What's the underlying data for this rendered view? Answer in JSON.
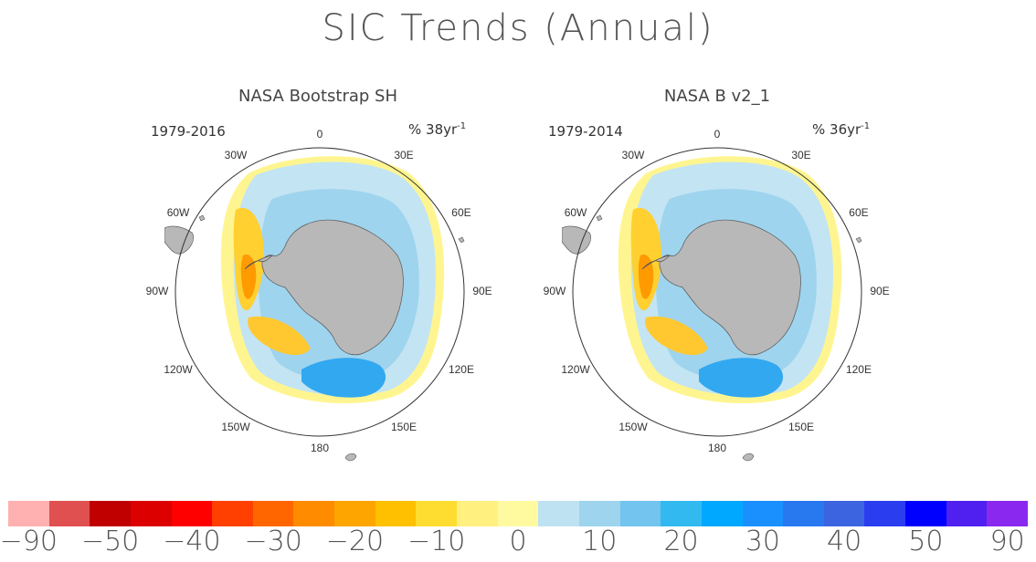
{
  "title": "SIC Trends (Annual)",
  "panels": [
    {
      "title": "NASA Bootstrap SH",
      "period": "1979-2016",
      "unit": "% 38yr",
      "unit_exp": "-1",
      "lon_labels": [
        "0",
        "30E",
        "60E",
        "90E",
        "120E",
        "150E",
        "180",
        "150W",
        "120W",
        "90W",
        "60W",
        "30W"
      ]
    },
    {
      "title": "NASA B v2_1",
      "period": "1979-2014",
      "unit": "% 36yr",
      "unit_exp": "-1",
      "lon_labels": [
        "0",
        "30E",
        "60E",
        "90E",
        "120E",
        "150E",
        "180",
        "150W",
        "120W",
        "90W",
        "60W",
        "30W"
      ]
    }
  ],
  "colorbar": {
    "colors": [
      "#ffb0b0",
      "#e05050",
      "#c00000",
      "#dd0000",
      "#ff0000",
      "#ff4000",
      "#ff6600",
      "#ff8c00",
      "#ffa500",
      "#ffc000",
      "#ffdd30",
      "#fff080",
      "#fffaa0",
      "#bfe2f2",
      "#9ed4ee",
      "#73c4ee",
      "#32baf0",
      "#00a8ff",
      "#1a90ff",
      "#2878f0",
      "#3c64e0",
      "#2a3ef0",
      "#0000ff",
      "#5020f0",
      "#8a28f0"
    ],
    "labels": [
      "-90",
      "-50",
      "-40",
      "-30",
      "-20",
      "-10",
      "0",
      "10",
      "20",
      "30",
      "40",
      "50",
      "90"
    ]
  },
  "colors": {
    "land": "#b8b8b8",
    "circle": "#333333"
  }
}
